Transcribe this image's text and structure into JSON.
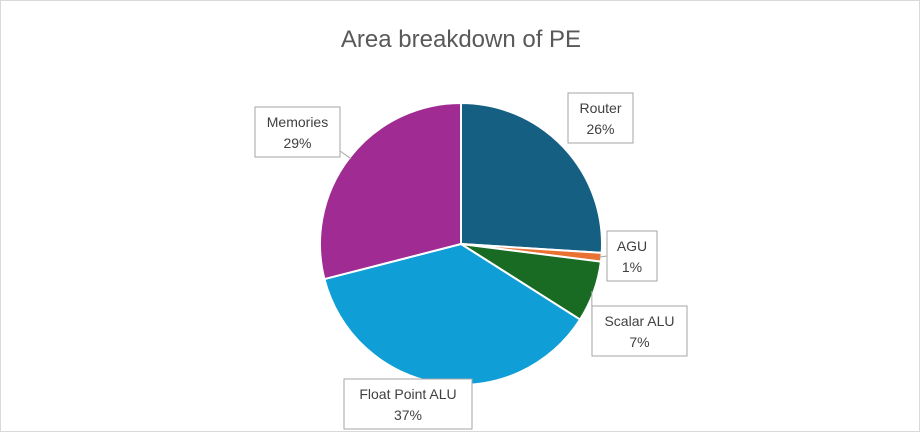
{
  "chart_data": {
    "type": "pie",
    "title": "Area breakdown of PE",
    "slices": [
      {
        "label": "Router",
        "value": 26,
        "value_label": "26%",
        "color": "#156082"
      },
      {
        "label": "AGU",
        "value": 1,
        "value_label": "1%",
        "color": "#E97132"
      },
      {
        "label": "Scalar ALU",
        "value": 7,
        "value_label": "7%",
        "color": "#196B24"
      },
      {
        "label": "Float Point ALU",
        "value": 37,
        "value_label": "37%",
        "color": "#0F9ED5"
      },
      {
        "label": "Memories",
        "value": 29,
        "value_label": "29%",
        "color": "#A02B93"
      }
    ],
    "legend": "none",
    "data_labels": "callout boxes with category name and percentage"
  }
}
